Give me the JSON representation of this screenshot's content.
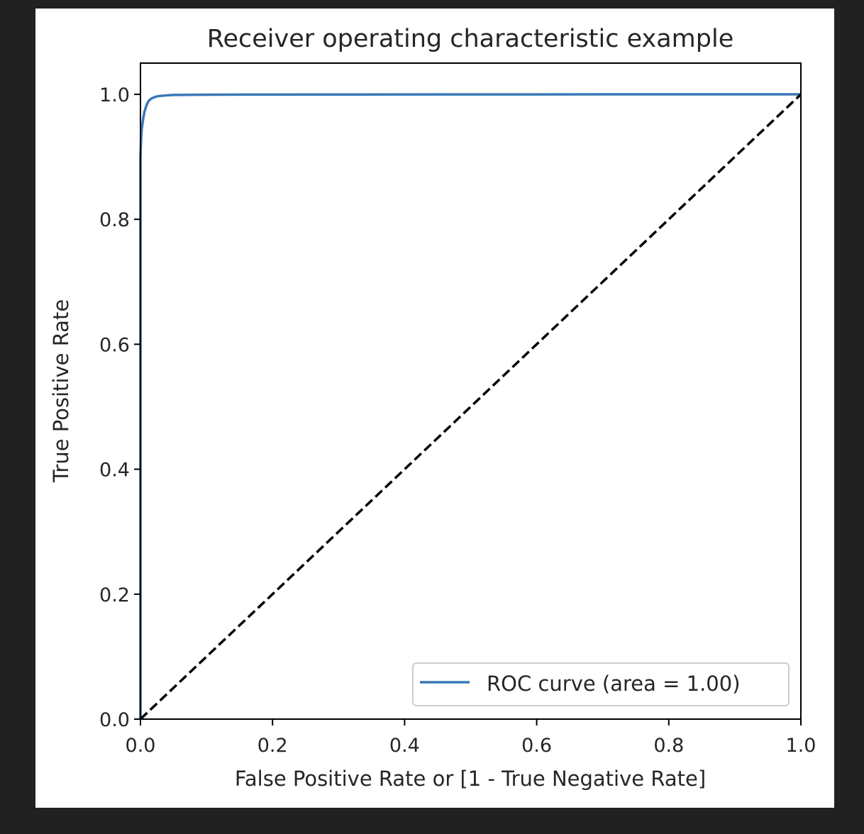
{
  "chart_data": {
    "type": "line",
    "title": "Receiver operating characteristic example",
    "xlabel": "False Positive Rate or [1 - True Negative Rate]",
    "ylabel": "True Positive Rate",
    "xlim": [
      0.0,
      1.0
    ],
    "ylim": [
      0.0,
      1.05
    ],
    "x_ticks": [
      "0.0",
      "0.2",
      "0.4",
      "0.6",
      "0.8",
      "1.0"
    ],
    "y_ticks": [
      "0.0",
      "0.2",
      "0.4",
      "0.6",
      "0.8",
      "1.0"
    ],
    "grid": false,
    "legend_position": "lower right",
    "series": [
      {
        "name": "ROC curve (area = 1.00)",
        "color": "#3a78b5",
        "style": "solid",
        "x": [
          0.0,
          0.0,
          0.001,
          0.002,
          0.004,
          0.006,
          0.009,
          0.012,
          0.016,
          0.02,
          0.026,
          0.035,
          0.05,
          0.08,
          0.15,
          0.3,
          0.5,
          0.7,
          0.9,
          1.0
        ],
        "y": [
          0.0,
          0.9,
          0.93,
          0.945,
          0.96,
          0.972,
          0.982,
          0.989,
          0.993,
          0.995,
          0.997,
          0.998,
          0.999,
          0.9993,
          0.9996,
          0.9998,
          0.9999,
          1.0,
          1.0,
          1.0
        ]
      },
      {
        "color": "#000000",
        "style": "dashed",
        "x": [
          0.0,
          1.0
        ],
        "y": [
          0.0,
          1.0
        ]
      }
    ]
  }
}
